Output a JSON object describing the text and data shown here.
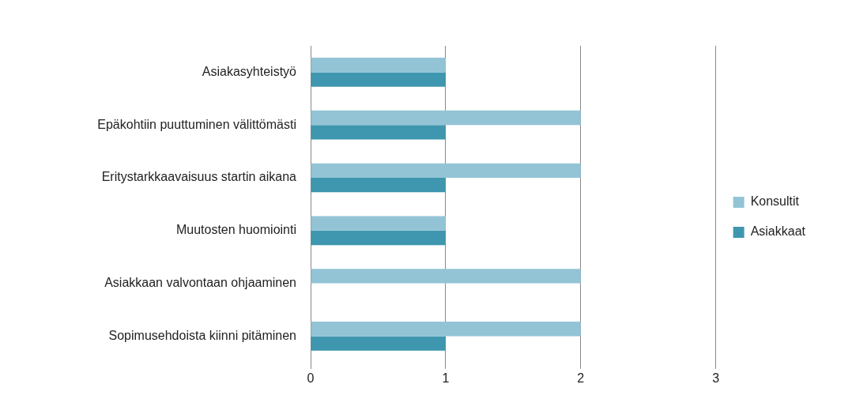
{
  "chart_data": {
    "type": "bar",
    "orientation": "horizontal",
    "categories": [
      "Asiakasyhteistyö",
      "Epäkohtiin puuttuminen välittömästi",
      "Eritystarkkaavaisuus startin aikana",
      "Muutosten huomiointi",
      "Asiakkaan valvontaan ohjaaminen",
      "Sopimusehdoista kiinni pitäminen"
    ],
    "series": [
      {
        "name": "Konsultit",
        "color": "#93c4d6",
        "values": [
          1,
          2,
          2,
          1,
          2,
          2
        ]
      },
      {
        "name": "Asiakkaat",
        "color": "#3e97ae",
        "values": [
          1,
          1,
          1,
          1,
          0,
          1
        ]
      }
    ],
    "xlim": [
      0,
      3
    ],
    "xticks": [
      0,
      1,
      2,
      3
    ],
    "grid": "x",
    "legend": "right"
  }
}
